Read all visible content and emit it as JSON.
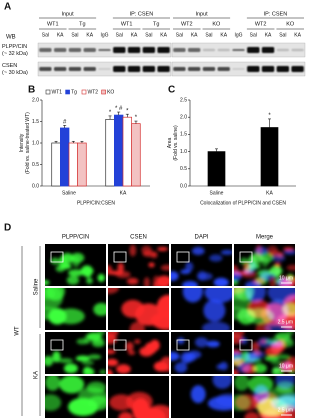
{
  "panels": {
    "A": {
      "label": "A",
      "wb": "WB",
      "rows": [
        {
          "name": "PLPP/CIN",
          "size": "(~ 32 kDa)"
        },
        {
          "name": "CSEN",
          "size": "(~ 30 kDa)"
        }
      ],
      "blots": [
        {
          "groups": [
            {
              "title": "Input",
              "lines": [
                "WT1",
                "Tg"
              ]
            },
            {
              "title": "IP: CSEN",
              "lines": [
                "WT1",
                "Tg"
              ]
            }
          ],
          "lanes": [
            "Sal",
            "KA",
            "Sal",
            "KA",
            "IgG",
            "Sal",
            "KA",
            "Sal",
            "KA"
          ]
        },
        {
          "groups": [
            {
              "title": "Input",
              "lines": [
                "WT2",
                "KO"
              ]
            },
            {
              "title": "IP: CSEN",
              "lines": [
                "WT2",
                "KO"
              ]
            }
          ],
          "lanes": [
            "Sal",
            "KA",
            "Sal",
            "KA",
            "IgG",
            "Sal",
            "KA",
            "Sal",
            "KA"
          ]
        }
      ]
    },
    "D": {
      "label": "D",
      "columns": [
        "PLPP/CIN",
        "CSEN",
        "DAPI",
        "Merge"
      ],
      "genotype": "WT",
      "rows": [
        "Saline",
        "KA"
      ],
      "scale_bars": [
        "10 μm",
        "2.5 μm"
      ]
    }
  },
  "chart_data": [
    {
      "type": "bar",
      "panel_label": "B",
      "ylabel": [
        "Intensity",
        "(Fold vs. saline-treated WT)"
      ],
      "xlabel": "PLPP/CIN:CSEN",
      "categories": [
        "Saline",
        "KA"
      ],
      "series": [
        {
          "name": "WT1",
          "color": "#ffffff",
          "edgecolor": "#333333",
          "values": [
            1.0,
            1.55
          ],
          "errors": [
            0.04,
            0.08
          ],
          "marks": [
            null,
            "*"
          ]
        },
        {
          "name": "Tg",
          "color": "#2342d8",
          "edgecolor": "#2342d8",
          "values": [
            1.35,
            1.65
          ],
          "errors": [
            0.06,
            0.07
          ],
          "marks": [
            "#",
            "* #"
          ]
        },
        {
          "name": "WT2",
          "color": "#ffffff",
          "edgecolor": "#d43030",
          "values": [
            1.0,
            1.6
          ],
          "errors": [
            0.04,
            0.07
          ],
          "marks": [
            null,
            "*"
          ]
        },
        {
          "name": "KO",
          "color": "#f3c2c2",
          "edgecolor": "#d43030",
          "values": [
            1.0,
            1.45
          ],
          "errors": [
            0.04,
            0.06
          ],
          "marks": [
            null,
            "*"
          ]
        }
      ],
      "ylim": [
        0,
        2.0
      ],
      "yticks": [
        {
          "value": 0,
          "label": "0.0"
        },
        {
          "value": 0.5,
          "label": "0.5"
        },
        {
          "value": 1,
          "label": "1.0"
        },
        {
          "value": 1.5,
          "label": "1.5"
        },
        {
          "value": 2,
          "label": "2.0"
        }
      ]
    },
    {
      "type": "bar",
      "panel_label": "C",
      "ylabel": [
        "Area",
        "(Fold vs. saline)"
      ],
      "xlabel": "Colocalization of PLPP/CIN and CSEN",
      "categories": [
        "Saline",
        "KA"
      ],
      "values": [
        1.0,
        1.7
      ],
      "errors": [
        0.08,
        0.25
      ],
      "marks": [
        null,
        "*"
      ],
      "color": "#000000",
      "ylim": [
        0,
        2.5
      ],
      "yticks": [
        {
          "value": 0,
          "label": "0.0"
        },
        {
          "value": 0.5,
          "label": "0.5"
        },
        {
          "value": 1,
          "label": "1.0"
        },
        {
          "value": 1.5,
          "label": "1.5"
        },
        {
          "value": 2,
          "label": "2.0"
        },
        {
          "value": 2.5,
          "label": "2.5"
        }
      ]
    }
  ]
}
